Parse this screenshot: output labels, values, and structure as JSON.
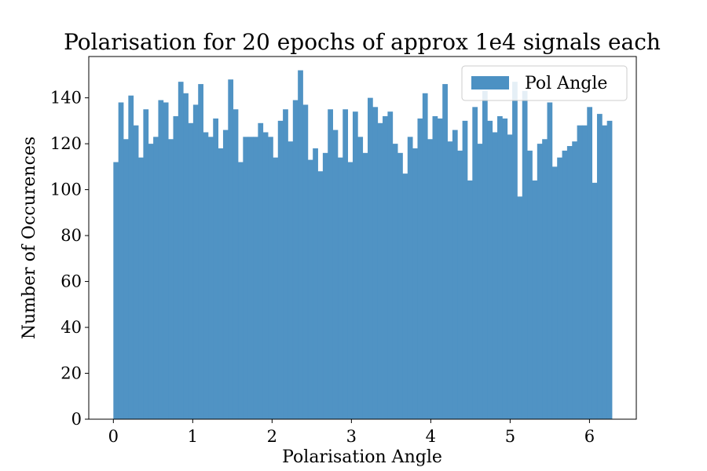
{
  "chart_data": {
    "type": "bar",
    "title": "Polarisation for 20 epochs of approx 1e4 signals each",
    "xlabel": "Polarisation Angle",
    "ylabel": "Number of Occurences",
    "xlim": [
      -0.31,
      6.59
    ],
    "ylim": [
      0,
      158
    ],
    "bin_start": 0,
    "bin_end": 6.2832,
    "xticks": [
      0,
      1,
      2,
      3,
      4,
      5,
      6
    ],
    "yticks": [
      0,
      20,
      40,
      60,
      80,
      100,
      120,
      140
    ],
    "grid": false,
    "legend": {
      "placement": "top-right",
      "entries": [
        "Pol Angle"
      ]
    },
    "color": "#4c91c3",
    "series": [
      {
        "name": "Pol Angle",
        "values": [
          112,
          138,
          122,
          141,
          128,
          114,
          135,
          120,
          123,
          139,
          138,
          122,
          132,
          147,
          142,
          129,
          137,
          146,
          125,
          123,
          131,
          118,
          126,
          148,
          135,
          112,
          123,
          123,
          123,
          129,
          125,
          123,
          114,
          130,
          135,
          121,
          139,
          152,
          137,
          113,
          118,
          108,
          116,
          135,
          126,
          114,
          135,
          112,
          134,
          123,
          116,
          140,
          136,
          129,
          132,
          134,
          120,
          116,
          107,
          123,
          118,
          131,
          142,
          122,
          132,
          131,
          146,
          121,
          126,
          117,
          130,
          104,
          136,
          120,
          143,
          130,
          125,
          132,
          131,
          124,
          147,
          97,
          143,
          117,
          104,
          120,
          122,
          138,
          110,
          114,
          117,
          119,
          121,
          128,
          128,
          136,
          103,
          133,
          128,
          130
        ]
      }
    ]
  }
}
